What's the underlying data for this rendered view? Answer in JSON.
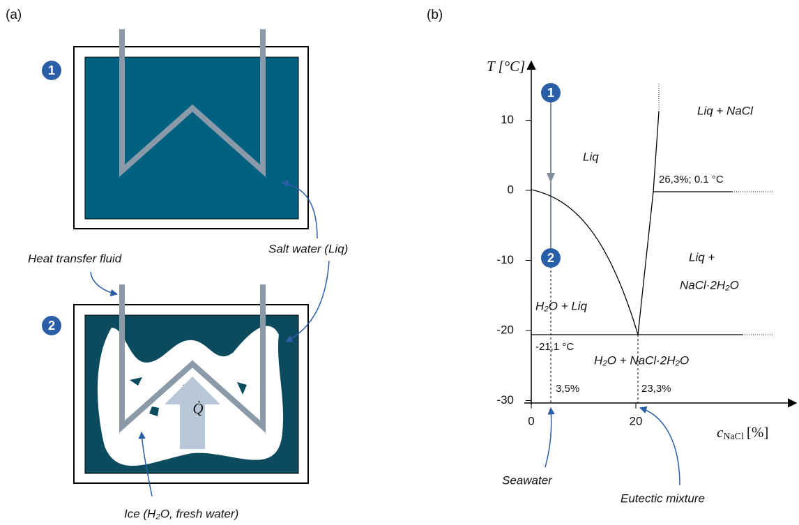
{
  "panel_a": {
    "label": "(a)",
    "state_1": "1",
    "state_2": "2",
    "heat_transfer_fluid": "Heat transfer fluid",
    "salt_water": "Salt water (Liq)",
    "ice": "Ice (H₂O, fresh water)",
    "heat_flow": "Q̇"
  },
  "panel_b": {
    "label": "(b)",
    "y_axis_label": "T [°C]",
    "x_axis_symbol": "c",
    "x_axis_subscript": "NaCl",
    "x_axis_unit": "[%]",
    "yticks": [
      10,
      0,
      -10,
      -20,
      -30
    ],
    "xticks": [
      0,
      20
    ],
    "state_1": "1",
    "state_2": "2",
    "regions": [
      "Liq",
      "Liq + NaCl",
      "Liq +",
      "NaCl·2H₂O",
      "H₂O + Liq",
      "H₂O + NaCl·2H₂O"
    ],
    "peritectic_label": "26,3%; 0.1 °C",
    "eutectic_temperature": "-21,1 °C",
    "seawater_concentration": "3,5%",
    "eutectic_concentration": "23,3%",
    "seawater": "Seawater",
    "eutectic_mixture": "Eutectic mixture"
  }
}
